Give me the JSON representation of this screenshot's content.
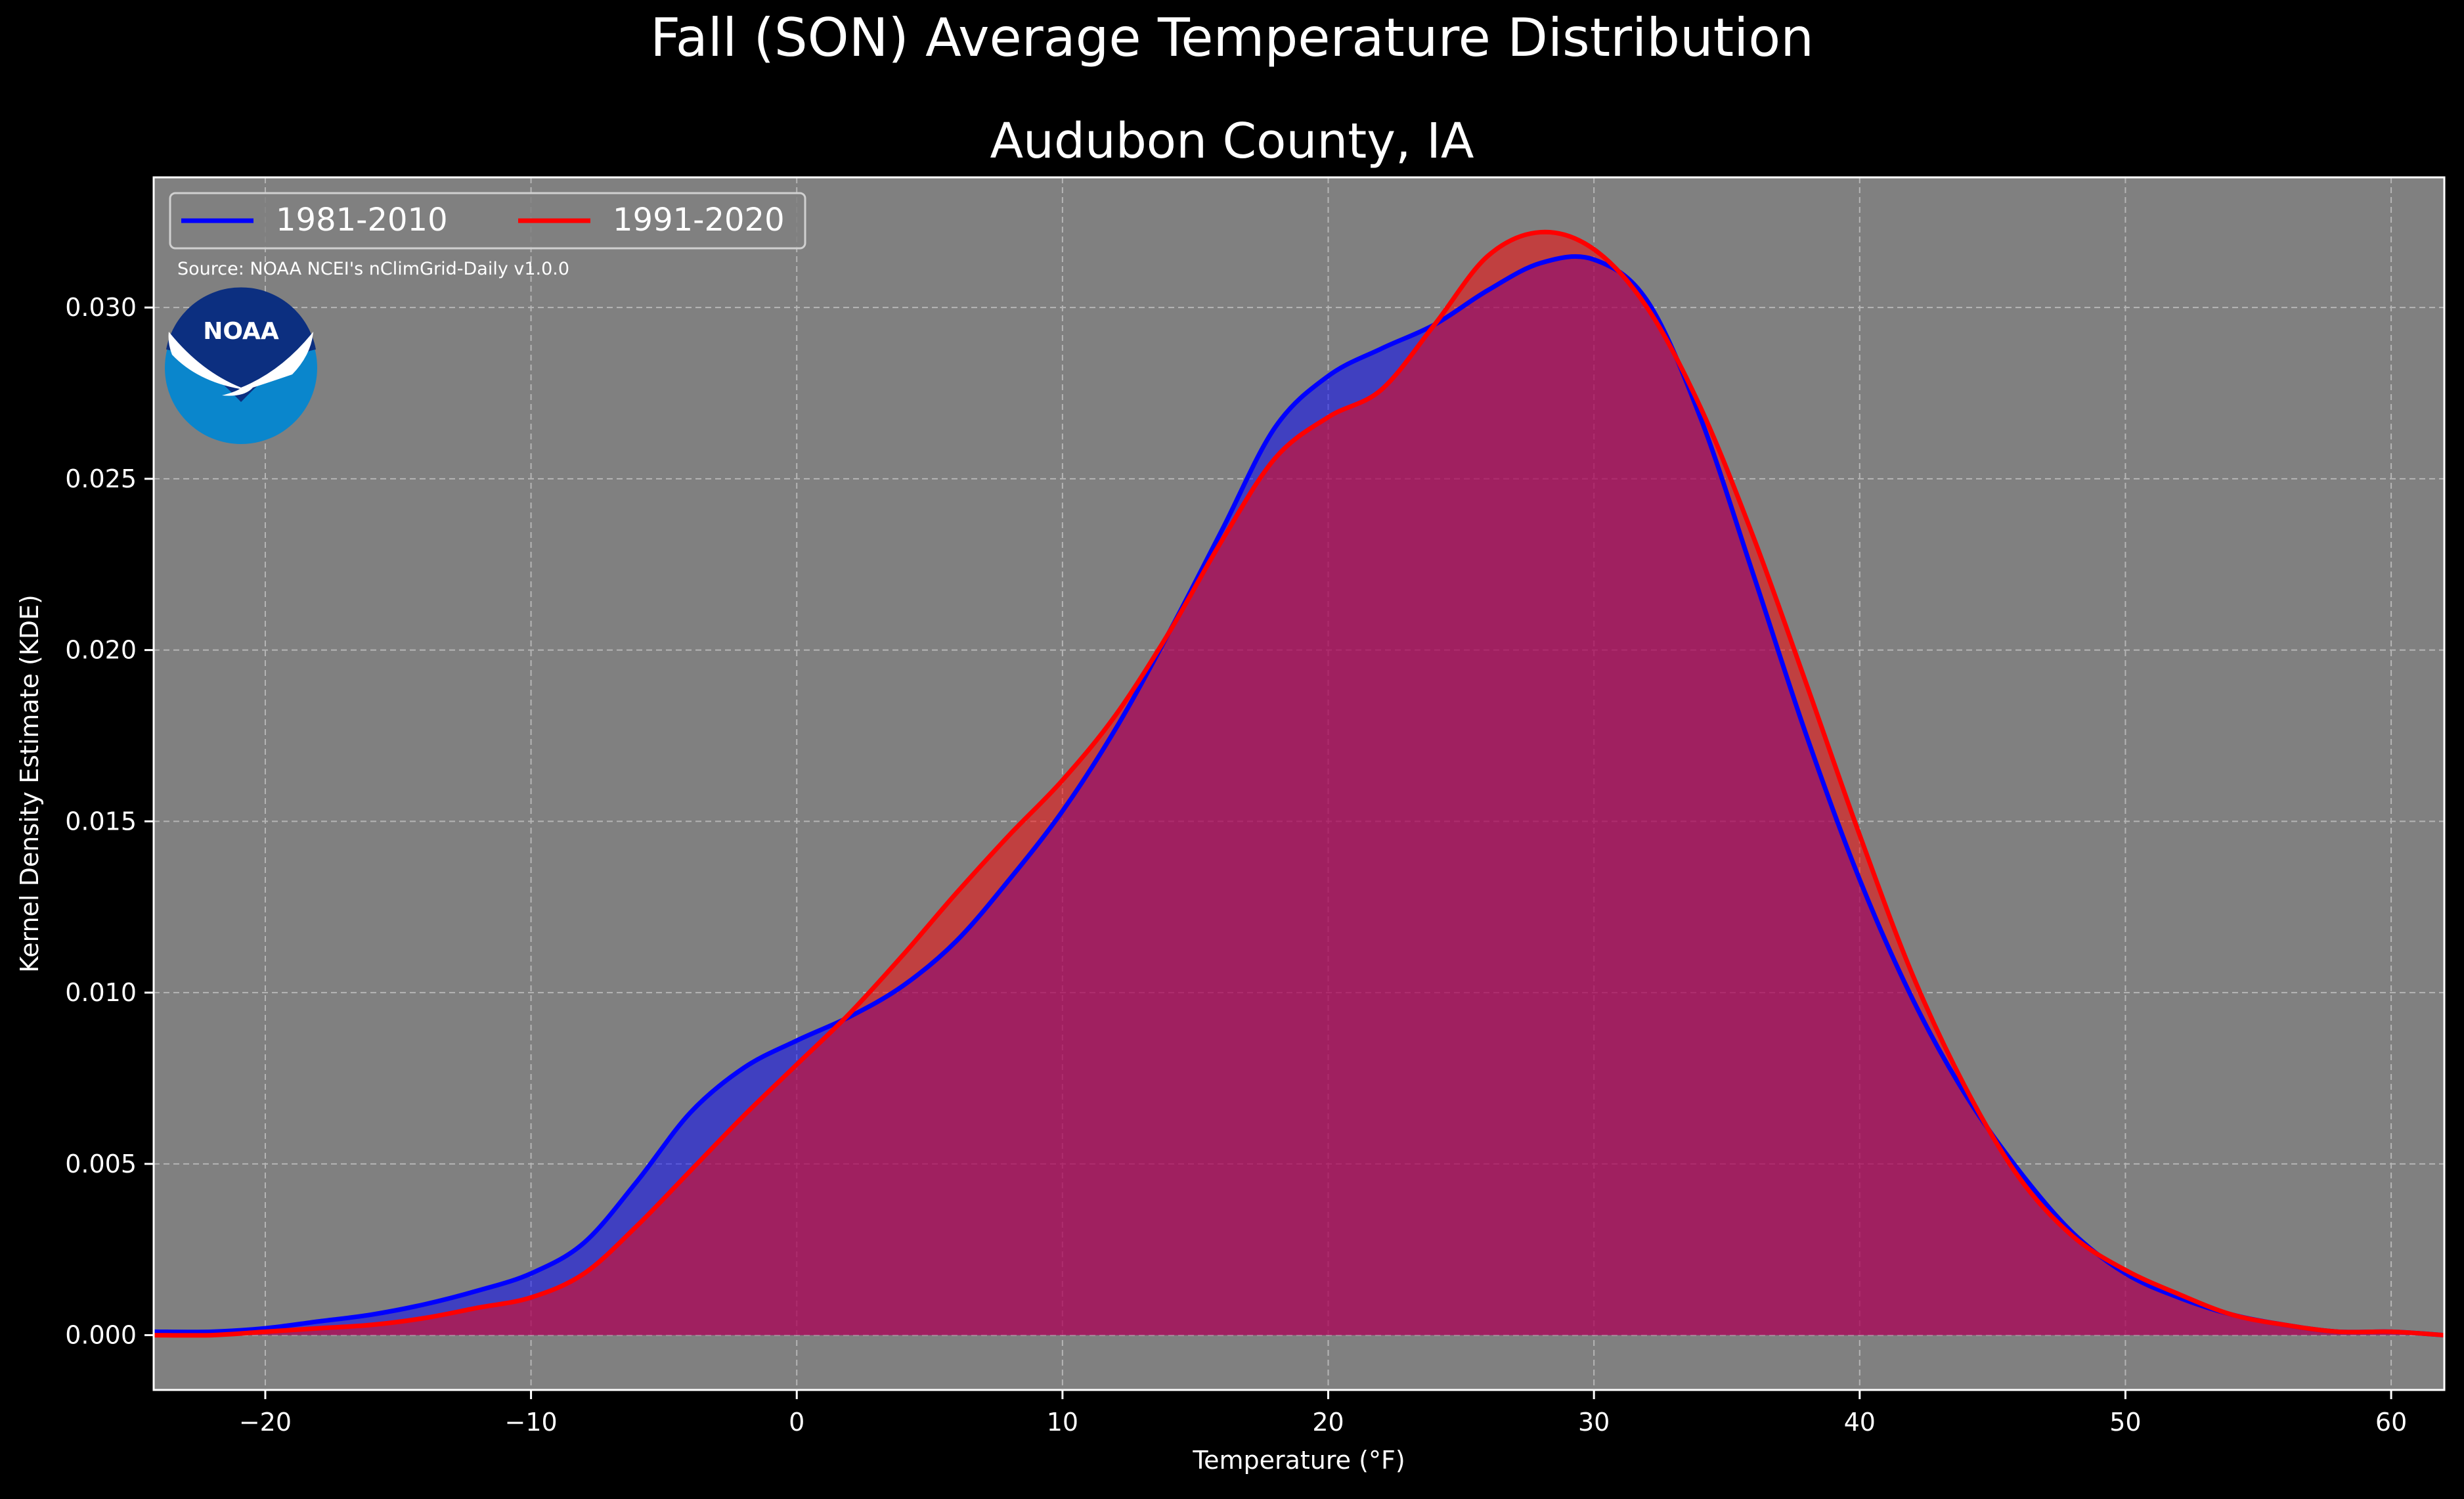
{
  "chart_data": {
    "type": "area",
    "title": "Fall (SON) Average Temperature Distribution",
    "subtitle": "Audubon County, IA",
    "xlabel": "Temperature (°F)",
    "ylabel": "Kernel Density Estimate (KDE)",
    "source_text": "Source: NOAA NCEI's nClimGrid-Daily v1.0.0",
    "logo_text": "NOAA",
    "xlim": [
      -24.2,
      62.0
    ],
    "ylim": [
      -0.0016,
      0.0338
    ],
    "xticks": [
      -20,
      -10,
      0,
      10,
      20,
      30,
      40,
      50,
      60
    ],
    "xtick_labels": [
      "−20",
      "−10",
      "0",
      "10",
      "20",
      "30",
      "40",
      "50",
      "60"
    ],
    "yticks": [
      0.0,
      0.005,
      0.01,
      0.015,
      0.02,
      0.025,
      0.03
    ],
    "ytick_labels": [
      "0.000",
      "0.005",
      "0.010",
      "0.015",
      "0.020",
      "0.025",
      "0.030"
    ],
    "grid": true,
    "legend_position": "top-left",
    "background_color": "#000000",
    "plot_background_color": "#808080",
    "series": [
      {
        "name": "1981-2010",
        "color": "#0000ff",
        "fill_color": "#0000ff",
        "x": [
          -24.2,
          -22,
          -20,
          -18,
          -16,
          -14,
          -12,
          -10,
          -8,
          -6,
          -4,
          -2,
          0,
          2,
          4,
          6,
          8,
          10,
          12,
          14,
          16,
          18,
          20,
          22,
          24,
          26,
          28,
          30,
          32,
          34,
          36,
          38,
          40,
          42,
          44,
          46,
          48,
          50,
          52,
          54,
          56,
          58,
          60,
          62
        ],
        "values": [
          0.0001,
          0.0001,
          0.0002,
          0.0004,
          0.0006,
          0.0009,
          0.0013,
          0.0018,
          0.0027,
          0.0045,
          0.0065,
          0.0078,
          0.0086,
          0.0093,
          0.0102,
          0.0115,
          0.0133,
          0.0153,
          0.0177,
          0.0205,
          0.0235,
          0.0265,
          0.028,
          0.0288,
          0.0295,
          0.0305,
          0.0313,
          0.0314,
          0.0302,
          0.0268,
          0.0222,
          0.0175,
          0.0133,
          0.0098,
          0.007,
          0.0048,
          0.003,
          0.0018,
          0.0011,
          0.0006,
          0.0003,
          0.0001,
          0.0001,
          0.0
        ]
      },
      {
        "name": "1991-2020",
        "color": "#ff0000",
        "fill_color": "#ff0000",
        "x": [
          -24.2,
          -22,
          -20,
          -18,
          -16,
          -14,
          -12,
          -10,
          -8,
          -6,
          -4,
          -2,
          0,
          2,
          4,
          6,
          8,
          10,
          12,
          14,
          16,
          18,
          20,
          22,
          24,
          26,
          28,
          30,
          32,
          34,
          36,
          38,
          40,
          42,
          44,
          46,
          48,
          50,
          52,
          54,
          56,
          58,
          60,
          62
        ],
        "values": [
          0.0,
          0.0,
          0.0001,
          0.0002,
          0.0003,
          0.0005,
          0.0008,
          0.0011,
          0.0018,
          0.0032,
          0.0048,
          0.0064,
          0.0079,
          0.0094,
          0.0111,
          0.0129,
          0.0146,
          0.0162,
          0.0181,
          0.0205,
          0.0232,
          0.0256,
          0.0268,
          0.0276,
          0.0295,
          0.0315,
          0.0322,
          0.0317,
          0.03,
          0.0271,
          0.0233,
          0.019,
          0.0146,
          0.0105,
          0.0072,
          0.0046,
          0.0029,
          0.0019,
          0.0012,
          0.0006,
          0.0003,
          0.0001,
          0.0001,
          0.0
        ]
      }
    ]
  }
}
